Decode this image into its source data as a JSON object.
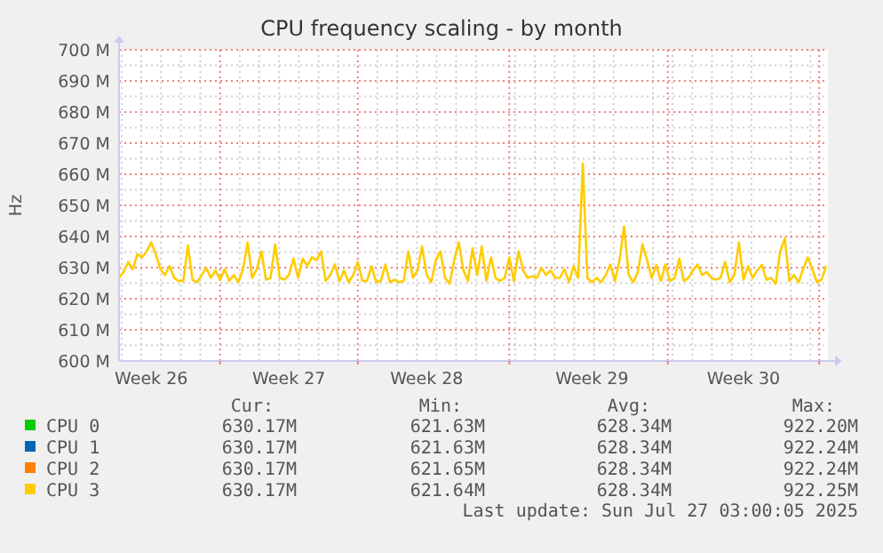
{
  "chart_data": {
    "type": "line",
    "title": "CPU frequency scaling - by month",
    "ylabel": "Hz",
    "categories": [
      null,
      null,
      null,
      null,
      null,
      null,
      null,
      "Week 26",
      null,
      null,
      null,
      null,
      null,
      null,
      null,
      null,
      null,
      null,
      null,
      null,
      null,
      null,
      null,
      null,
      null,
      null,
      null,
      null,
      null,
      null,
      null,
      null,
      null,
      null,
      null,
      null,
      null,
      "Week 27",
      null,
      null,
      null,
      null,
      null,
      null,
      null,
      null,
      null,
      null,
      null,
      null,
      null,
      null,
      null,
      null,
      null,
      null,
      null,
      null,
      null,
      null,
      null,
      null,
      null,
      null,
      null,
      null,
      null,
      "Week 28",
      null,
      null,
      null,
      null,
      null,
      null,
      null,
      null,
      null,
      null,
      null,
      null,
      null,
      null,
      null,
      null,
      null,
      null,
      null,
      null,
      null,
      null,
      null,
      null,
      null,
      null,
      null,
      null,
      null,
      null,
      null,
      null,
      null,
      null,
      null,
      "Week 29",
      null,
      null,
      null,
      null,
      null,
      null,
      null,
      null,
      null,
      null,
      null,
      null,
      null,
      null,
      null,
      null,
      null,
      null,
      null,
      null,
      null,
      null,
      null,
      null,
      null,
      null,
      null,
      null,
      null,
      null,
      null,
      null,
      "Week 30",
      null,
      null,
      null,
      null,
      null,
      null,
      null,
      null,
      null,
      null,
      null,
      null,
      null,
      null,
      null,
      null,
      null,
      null
    ],
    "ylim": [
      600,
      700
    ],
    "yticks": [
      {
        "value": 600,
        "label": "600 M"
      },
      {
        "value": 610,
        "label": "610 M"
      },
      {
        "value": 620,
        "label": "620 M"
      },
      {
        "value": 630,
        "label": "630 M"
      },
      {
        "value": 640,
        "label": "640 M"
      },
      {
        "value": 650,
        "label": "650 M"
      },
      {
        "value": 660,
        "label": "660 M"
      },
      {
        "value": 670,
        "label": "670 M"
      },
      {
        "value": 680,
        "label": "680 M"
      },
      {
        "value": 690,
        "label": "690 M"
      },
      {
        "value": 700,
        "label": "700 M"
      }
    ],
    "grid": true,
    "legend": "bottom",
    "line_style": "solid",
    "series": [
      {
        "name": "CPU 0",
        "color": "#00cc00",
        "values": [
          null,
          null,
          null,
          null,
          null,
          null,
          null,
          null,
          null,
          null,
          null,
          null,
          null,
          null,
          null,
          null,
          null,
          null,
          null,
          null,
          null,
          null,
          null,
          null,
          null,
          null,
          null,
          null,
          null,
          null,
          null,
          null,
          null,
          null,
          null,
          null,
          null,
          null,
          null,
          null,
          null,
          null,
          null,
          null,
          null,
          null,
          null,
          null,
          null,
          null,
          null,
          null,
          null,
          null,
          null,
          null,
          null,
          null,
          null,
          null,
          null,
          null,
          null,
          null,
          null,
          null,
          null,
          null,
          null,
          null,
          null,
          null,
          null,
          null,
          null,
          null,
          null,
          null,
          null,
          null,
          null,
          null,
          null,
          null,
          null,
          null,
          null,
          null,
          null,
          null,
          null,
          null,
          null,
          null,
          null,
          null,
          null,
          null,
          null,
          null,
          null,
          null,
          null,
          null,
          null,
          null,
          null,
          null,
          null,
          null,
          null,
          null,
          null,
          null,
          null,
          null,
          null,
          null,
          null,
          null,
          null,
          null,
          null,
          null,
          null,
          null,
          null,
          null,
          null,
          null,
          null,
          null,
          null,
          null,
          null,
          null,
          null,
          null,
          null,
          null,
          null,
          null,
          null,
          null,
          null,
          null,
          null,
          null,
          null,
          null,
          null,
          null,
          null,
          null,
          null
        ]
      },
      {
        "name": "CPU 1",
        "color": "#0066b3",
        "values": [
          null,
          null,
          null,
          null,
          null,
          null,
          null,
          null,
          null,
          null,
          null,
          null,
          null,
          null,
          null,
          null,
          null,
          null,
          null,
          null,
          null,
          null,
          null,
          null,
          null,
          null,
          null,
          null,
          null,
          null,
          null,
          null,
          null,
          null,
          null,
          null,
          null,
          null,
          null,
          null,
          null,
          null,
          null,
          null,
          null,
          null,
          null,
          null,
          null,
          null,
          null,
          null,
          null,
          null,
          null,
          null,
          null,
          null,
          null,
          null,
          null,
          null,
          null,
          null,
          null,
          null,
          null,
          null,
          null,
          null,
          null,
          null,
          null,
          null,
          null,
          null,
          null,
          null,
          null,
          null,
          null,
          null,
          null,
          null,
          null,
          null,
          null,
          null,
          null,
          null,
          null,
          null,
          null,
          null,
          null,
          null,
          null,
          null,
          null,
          null,
          null,
          null,
          null,
          null,
          null,
          null,
          null,
          null,
          null,
          null,
          null,
          null,
          null,
          null,
          null,
          null,
          null,
          null,
          null,
          null,
          null,
          null,
          null,
          null,
          null,
          null,
          null,
          null,
          null,
          null,
          null,
          null,
          null,
          null,
          null,
          null,
          null,
          null,
          null,
          null,
          null,
          null,
          null,
          null,
          null,
          null,
          null,
          null,
          null,
          null,
          null,
          null,
          null,
          null,
          null
        ]
      },
      {
        "name": "CPU 2",
        "color": "#ff8000",
        "values": [
          null,
          null,
          null,
          null,
          null,
          null,
          null,
          null,
          null,
          null,
          null,
          null,
          null,
          null,
          null,
          null,
          null,
          null,
          null,
          null,
          null,
          null,
          null,
          null,
          null,
          null,
          null,
          null,
          null,
          null,
          null,
          null,
          null,
          null,
          null,
          null,
          null,
          null,
          null,
          null,
          null,
          null,
          null,
          null,
          null,
          null,
          null,
          null,
          null,
          null,
          null,
          null,
          null,
          null,
          null,
          null,
          null,
          null,
          null,
          null,
          null,
          null,
          null,
          null,
          null,
          null,
          null,
          null,
          null,
          null,
          null,
          null,
          null,
          null,
          null,
          null,
          null,
          null,
          null,
          null,
          null,
          null,
          null,
          null,
          null,
          null,
          null,
          null,
          null,
          null,
          null,
          null,
          null,
          null,
          null,
          null,
          null,
          null,
          null,
          null,
          null,
          null,
          null,
          null,
          null,
          null,
          null,
          null,
          null,
          null,
          null,
          null,
          null,
          null,
          null,
          null,
          null,
          null,
          null,
          null,
          null,
          null,
          null,
          null,
          null,
          null,
          null,
          null,
          null,
          null,
          null,
          null,
          null,
          null,
          null,
          null,
          null,
          null,
          null,
          null,
          null,
          null,
          null,
          null,
          null,
          null,
          null,
          null,
          null,
          null,
          null,
          null,
          null,
          null,
          null
        ]
      },
      {
        "name": "CPU 3",
        "color": "#ffcc00",
        "values": [
          626.7,
          628.6,
          631.8,
          629.5,
          634.3,
          633.3,
          635.2,
          638.1,
          634.3,
          629.5,
          627.6,
          630.5,
          626.7,
          625.7,
          625.7,
          637.1,
          626.1,
          625.3,
          627.6,
          629.9,
          626.7,
          629.1,
          626.1,
          629.5,
          625.7,
          627.6,
          625.3,
          629.5,
          638.1,
          626.7,
          629.5,
          635.2,
          626.1,
          626.7,
          637.5,
          626.7,
          626.1,
          627.6,
          632.9,
          626.7,
          632.9,
          630.5,
          633.3,
          632.4,
          635.2,
          625.7,
          627.6,
          631,
          625.7,
          629.1,
          625.3,
          627.6,
          631.8,
          625.7,
          625.7,
          630.5,
          625.3,
          625.7,
          631,
          625.3,
          626.1,
          625.3,
          625.7,
          635.2,
          626.7,
          629.1,
          636.8,
          627.6,
          625.3,
          632.4,
          635.2,
          626.7,
          624.8,
          632.4,
          638.1,
          629.1,
          625.7,
          636.2,
          627.6,
          636.8,
          625.7,
          633.3,
          626.7,
          625.7,
          626.7,
          633.3,
          625.7,
          635.2,
          629.1,
          626.7,
          627.2,
          626.7,
          629.9,
          627.6,
          629.1,
          626.7,
          626.7,
          629.5,
          625.3,
          630.5,
          626.7,
          663.4,
          626.7,
          625.3,
          626.7,
          625.3,
          627.6,
          631,
          625.7,
          632.4,
          643.2,
          627.6,
          625.3,
          628.6,
          637.5,
          632.4,
          626.7,
          630.9,
          625.7,
          631,
          625.7,
          626.7,
          632.9,
          625.7,
          626.7,
          629.1,
          631,
          627.6,
          628.6,
          626.7,
          626.1,
          626.7,
          631.8,
          625.3,
          627.6,
          638.1,
          626.1,
          630.5,
          626.7,
          629.1,
          630.9,
          626.1,
          626.7,
          624.8,
          635.2,
          639.4,
          625.7,
          627.6,
          625.3,
          629.5,
          633.3,
          629.5,
          625.3,
          626.1,
          630.5
        ]
      }
    ],
    "annotations": [
      "Cur:",
      "Min:",
      "Avg:",
      "Max:",
      "630.17M",
      "621.63M",
      "628.34M",
      "922.20M",
      "630.17M",
      "621.63M",
      "628.34M",
      "922.24M",
      "630.17M",
      "621.65M",
      "628.34M",
      "922.24M",
      "630.17M",
      "621.64M",
      "628.34M",
      "922.25M",
      "Last update: Sun Jul 27 03:00:05 2025"
    ]
  }
}
